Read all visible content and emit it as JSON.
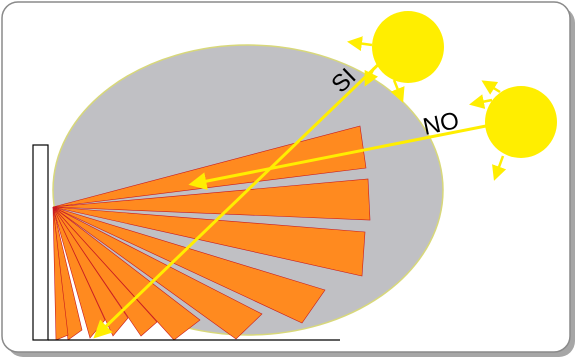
{
  "labels": {
    "si": "SI",
    "no": "NO"
  },
  "colors": {
    "frame_stroke": "#8a8a8a",
    "shadow": "#a6a6a6",
    "ellipse_fill": "#c0c0c4",
    "ellipse_stroke": "#d8d87a",
    "fan_fill": "#ff8a1f",
    "fan_stroke": "#c8191f",
    "sun": "#ffee00",
    "ray": "#ffee00",
    "ground": "#000000"
  },
  "icons": {
    "sun_top": "sun-icon",
    "sun_right": "sun-icon"
  }
}
